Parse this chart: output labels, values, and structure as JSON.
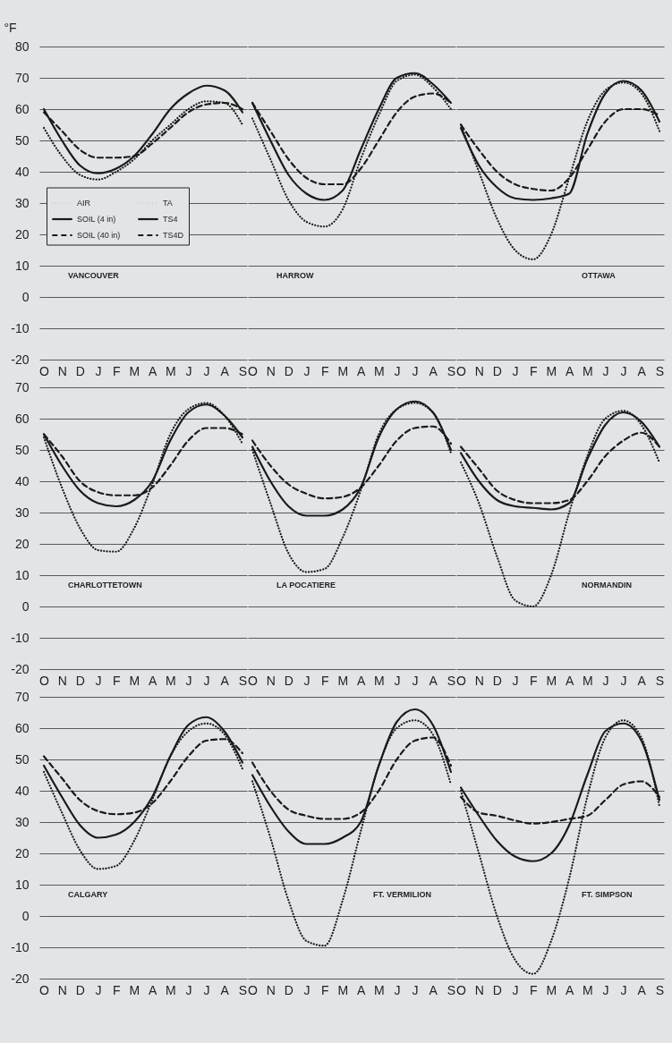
{
  "chart_data": [
    {
      "type": "line",
      "title": "VANCOUVER",
      "ylabel": "°F",
      "categories": [
        "O",
        "N",
        "D",
        "J",
        "F",
        "M",
        "A",
        "M",
        "J",
        "J",
        "A",
        "S"
      ],
      "ylim": [
        -20,
        80
      ],
      "yticks": [
        -20,
        -10,
        0,
        10,
        20,
        30,
        40,
        50,
        60,
        70,
        80
      ],
      "grid": "y",
      "legend": "left",
      "marker": "none",
      "annotations": [
        "TA",
        "TS4",
        "TS4D"
      ],
      "series": [
        {
          "name": "AIR",
          "color": "#1a1a1a",
          "line_style": "dotted",
          "values": [
            54,
            45,
            39,
            37.5,
            40,
            44,
            50,
            55,
            60,
            62.5,
            62,
            55
          ]
        },
        {
          "name": "SOIL (4 in)",
          "color": "#1a1a1a",
          "line_style": "solid",
          "values": [
            60,
            50,
            42,
            39.5,
            41,
            45,
            52,
            60,
            65,
            67.5,
            66,
            59
          ]
        },
        {
          "name": "SOIL (40 in)",
          "color": "#1a1a1a",
          "line_style": "dashed",
          "values": [
            59,
            53,
            47,
            44.5,
            44.5,
            45,
            49,
            54,
            59,
            61.5,
            62,
            60
          ]
        }
      ]
    },
    {
      "type": "line",
      "title": "HARROW",
      "categories": [
        "O",
        "N",
        "D",
        "J",
        "F",
        "M",
        "A",
        "M",
        "J",
        "J",
        "A",
        "S"
      ],
      "ylim": [
        -20,
        80
      ],
      "yticks": [
        -20,
        -10,
        0,
        10,
        20,
        30,
        40,
        50,
        60,
        70,
        80
      ],
      "grid": "y",
      "tick_labels": "x",
      "marker": "none",
      "series": [
        {
          "color": "#1a1a1a",
          "line_style": "dotted",
          "values": [
            57,
            44,
            31,
            24,
            22.5,
            28,
            44,
            58,
            69,
            71,
            67,
            60
          ]
        },
        {
          "color": "#1a1a1a",
          "line_style": "solid",
          "values": [
            62,
            50,
            39,
            33,
            31,
            34,
            47,
            60,
            70,
            71.5,
            68,
            62
          ]
        },
        {
          "color": "#1a1a1a",
          "line_style": "dashed",
          "values": [
            62,
            53,
            44,
            38,
            36,
            36,
            41,
            50,
            59,
            64,
            65,
            62
          ]
        }
      ]
    },
    {
      "type": "line",
      "title": "OTTAWA",
      "categories": [
        "O",
        "N",
        "D",
        "J",
        "F",
        "M",
        "A",
        "M",
        "J",
        "J",
        "A",
        "S"
      ],
      "ylim": [
        -20,
        80
      ],
      "yticks": [
        -20,
        -10,
        0,
        10,
        20,
        30,
        40,
        50,
        60,
        70,
        80
      ],
      "grid": "y",
      "tick_labels": "x",
      "marker": "none",
      "series": [
        {
          "color": "#1a1a1a",
          "line_style": "dotted",
          "values": [
            55,
            40,
            25,
            15,
            12,
            20,
            38,
            56,
            66,
            68.5,
            65,
            53
          ]
        },
        {
          "color": "#1a1a1a",
          "line_style": "solid",
          "values": [
            54,
            42,
            35,
            31.5,
            31,
            31.5,
            33,
            52,
            65,
            69,
            66,
            56
          ]
        },
        {
          "color": "#1a1a1a",
          "line_style": "dashed",
          "values": [
            55,
            47,
            40,
            36,
            34.5,
            34,
            38,
            47,
            56,
            60,
            60,
            58
          ]
        }
      ]
    },
    {
      "type": "line",
      "title": "CHARLOTTETOWN",
      "categories": [
        "O",
        "N",
        "D",
        "J",
        "F",
        "M",
        "A",
        "M",
        "J",
        "J",
        "A",
        "S"
      ],
      "ylim": [
        -20,
        70
      ],
      "yticks": [
        -20,
        -10,
        0,
        10,
        20,
        30,
        40,
        50,
        60,
        70
      ],
      "grid": "y",
      "marker": "none",
      "series": [
        {
          "color": "#1a1a1a",
          "line_style": "dotted",
          "values": [
            54,
            38,
            25,
            18,
            17.5,
            25,
            39,
            55,
            63,
            65,
            61,
            52
          ]
        },
        {
          "color": "#1a1a1a",
          "line_style": "solid",
          "values": [
            55,
            45,
            37,
            33,
            32,
            34,
            40,
            53,
            62,
            64.5,
            61,
            54
          ]
        },
        {
          "color": "#1a1a1a",
          "line_style": "dashed",
          "values": [
            55,
            48,
            40,
            36.5,
            35.5,
            35.5,
            38,
            45,
            53,
            57,
            57,
            55
          ]
        }
      ]
    },
    {
      "type": "line",
      "title": "LA POCATIERE",
      "categories": [
        "O",
        "N",
        "D",
        "J",
        "F",
        "M",
        "A",
        "M",
        "J",
        "J",
        "A",
        "S"
      ],
      "ylim": [
        -20,
        70
      ],
      "yticks": [
        -20,
        -10,
        0,
        10,
        20,
        30,
        40,
        50,
        60,
        70
      ],
      "grid": "y",
      "tick_labels": "x",
      "marker": "none",
      "series": [
        {
          "color": "#1a1a1a",
          "line_style": "dotted",
          "values": [
            50,
            33,
            17,
            11,
            12,
            22,
            37,
            55,
            63,
            65,
            62,
            49
          ]
        },
        {
          "color": "#1a1a1a",
          "line_style": "solid",
          "values": [
            51,
            40,
            32,
            29,
            29,
            31,
            38,
            54,
            63,
            65.5,
            62,
            50
          ]
        },
        {
          "color": "#1a1a1a",
          "line_style": "dashed",
          "values": [
            53,
            45,
            39,
            36,
            34.5,
            35,
            38,
            45,
            53,
            57,
            57.5,
            52
          ]
        }
      ]
    },
    {
      "type": "line",
      "title": "NORMANDIN",
      "categories": [
        "O",
        "N",
        "D",
        "J",
        "F",
        "M",
        "A",
        "M",
        "J",
        "J",
        "A",
        "S"
      ],
      "ylim": [
        -20,
        70
      ],
      "yticks": [
        -20,
        -10,
        0,
        10,
        20,
        30,
        40,
        50,
        60,
        70
      ],
      "grid": "y",
      "tick_labels": "x",
      "marker": "none",
      "series": [
        {
          "color": "#1a1a1a",
          "line_style": "dotted",
          "values": [
            46,
            33,
            16,
            2,
            0,
            10,
            30,
            48,
            60,
            62.5,
            58,
            46
          ]
        },
        {
          "color": "#1a1a1a",
          "line_style": "solid",
          "values": [
            49,
            40,
            34,
            32,
            31.5,
            31,
            33,
            47,
            58,
            62,
            59,
            51
          ]
        },
        {
          "color": "#1a1a1a",
          "line_style": "dashed",
          "values": [
            51,
            44,
            37,
            34,
            33,
            33,
            34,
            40,
            48,
            53,
            55.5,
            51
          ]
        }
      ]
    },
    {
      "type": "line",
      "title": "CALGARY",
      "categories": [
        "O",
        "N",
        "D",
        "J",
        "F",
        "M",
        "A",
        "M",
        "J",
        "J",
        "A",
        "S"
      ],
      "ylim": [
        -20,
        70
      ],
      "yticks": [
        -20,
        -10,
        0,
        10,
        20,
        30,
        40,
        50,
        60,
        70
      ],
      "grid": "y",
      "marker": "none",
      "series": [
        {
          "color": "#1a1a1a",
          "line_style": "dotted",
          "values": [
            46,
            33,
            21,
            15,
            16,
            24,
            37,
            51,
            59,
            61.5,
            58,
            47
          ]
        },
        {
          "color": "#1a1a1a",
          "line_style": "solid",
          "values": [
            48,
            38,
            29,
            25,
            26,
            30,
            38,
            51,
            61,
            63.5,
            59,
            49
          ]
        },
        {
          "color": "#1a1a1a",
          "line_style": "dashed",
          "values": [
            51,
            44,
            37,
            33.5,
            32.5,
            33,
            36,
            43,
            51,
            56,
            56.5,
            52
          ]
        }
      ]
    },
    {
      "type": "line",
      "title": "FT. VERMILION",
      "categories": [
        "O",
        "N",
        "D",
        "J",
        "F",
        "M",
        "A",
        "M",
        "J",
        "J",
        "A",
        "S"
      ],
      "ylim": [
        -20,
        70
      ],
      "yticks": [
        -20,
        -10,
        0,
        10,
        20,
        30,
        40,
        50,
        60,
        70
      ],
      "grid": "y",
      "tick_labels": "x",
      "marker": "none",
      "series": [
        {
          "color": "#1a1a1a",
          "line_style": "dotted",
          "values": [
            43,
            25,
            5,
            -8,
            -9.5,
            5,
            27,
            48,
            60,
            62.5,
            58,
            42
          ]
        },
        {
          "color": "#1a1a1a",
          "line_style": "solid",
          "values": [
            45,
            35,
            27,
            23,
            23,
            25,
            30,
            48,
            62,
            66,
            61,
            46
          ]
        },
        {
          "color": "#1a1a1a",
          "line_style": "dashed",
          "values": [
            49,
            40,
            34,
            32,
            31,
            31,
            33,
            40,
            50,
            56,
            57,
            48
          ]
        }
      ]
    },
    {
      "type": "line",
      "title": "FT. SIMPSON",
      "categories": [
        "O",
        "N",
        "D",
        "J",
        "F",
        "M",
        "A",
        "M",
        "J",
        "J",
        "A",
        "S"
      ],
      "ylim": [
        -20,
        70
      ],
      "yticks": [
        -20,
        -10,
        0,
        10,
        20,
        30,
        40,
        50,
        60,
        70
      ],
      "grid": "y",
      "tick_labels": "x",
      "marker": "none",
      "series": [
        {
          "color": "#1a1a1a",
          "line_style": "dotted",
          "values": [
            40,
            20,
            0,
            -14,
            -18.5,
            -8,
            12,
            38,
            57,
            62.5,
            57,
            35
          ]
        },
        {
          "color": "#1a1a1a",
          "line_style": "solid",
          "values": [
            41,
            32,
            24,
            19,
            17.5,
            20,
            29,
            45,
            59,
            61.5,
            56,
            37
          ]
        },
        {
          "color": "#1a1a1a",
          "line_style": "dashed",
          "values": [
            38,
            33,
            32,
            30.5,
            29.5,
            30,
            31,
            32,
            37,
            42,
            43,
            38
          ]
        }
      ]
    }
  ]
}
